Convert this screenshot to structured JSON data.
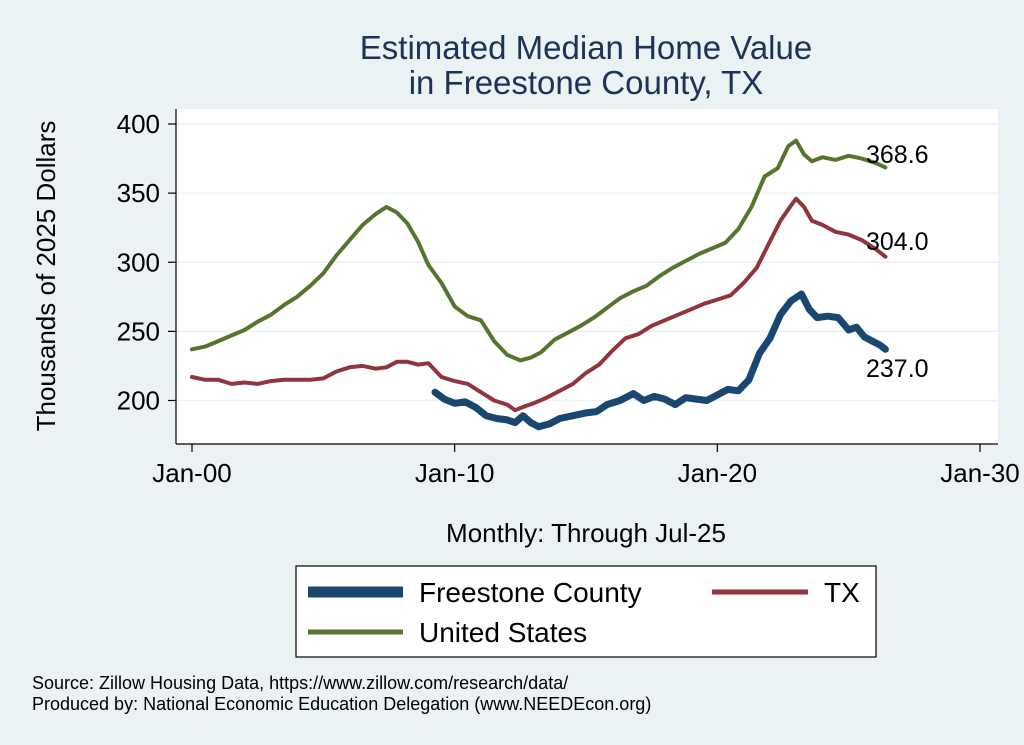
{
  "colors": {
    "freestone": "#1a476f",
    "tx": "#90353b",
    "us": "#55752f",
    "title": "#1c3357",
    "background": "#eaf2f3",
    "plot_background": "#ffffff",
    "grid": "#eaf2f3"
  },
  "chart_data": {
    "type": "line",
    "title": [
      "Estimated Median Home Value",
      "in Freestone County, TX"
    ],
    "xlabel": "Monthly: Through Jul-25",
    "ylabel": "Thousands of 2025 Dollars",
    "xlim": [
      2000,
      2030
    ],
    "ylim": [
      180,
      400
    ],
    "x_ticks": [
      {
        "value": 2000,
        "label": "Jan-00"
      },
      {
        "value": 2010,
        "label": "Jan-10"
      },
      {
        "value": 2020,
        "label": "Jan-20"
      },
      {
        "value": 2030,
        "label": "Jan-30"
      }
    ],
    "y_ticks": [
      200,
      250,
      300,
      350,
      400
    ],
    "grid": true,
    "legend": {
      "position": "bottom",
      "columns": 2
    },
    "series": [
      {
        "key": "freestone",
        "name": "Freestone County",
        "end_label": "237.0",
        "data": [
          [
            2009.25,
            206
          ],
          [
            2009.6,
            201
          ],
          [
            2010.0,
            198
          ],
          [
            2010.4,
            199
          ],
          [
            2010.8,
            195
          ],
          [
            2011.2,
            189
          ],
          [
            2011.6,
            187
          ],
          [
            2012.0,
            186
          ],
          [
            2012.3,
            184
          ],
          [
            2012.6,
            189
          ],
          [
            2012.9,
            184
          ],
          [
            2013.2,
            181
          ],
          [
            2013.6,
            183
          ],
          [
            2014.0,
            187
          ],
          [
            2014.5,
            189
          ],
          [
            2015.0,
            191
          ],
          [
            2015.4,
            192
          ],
          [
            2015.8,
            197
          ],
          [
            2016.3,
            200
          ],
          [
            2016.8,
            205
          ],
          [
            2017.2,
            200
          ],
          [
            2017.6,
            203
          ],
          [
            2018.0,
            201
          ],
          [
            2018.4,
            197
          ],
          [
            2018.8,
            202
          ],
          [
            2019.2,
            201
          ],
          [
            2019.6,
            200
          ],
          [
            2020.0,
            204
          ],
          [
            2020.4,
            208
          ],
          [
            2020.8,
            207
          ],
          [
            2021.2,
            215
          ],
          [
            2021.6,
            234
          ],
          [
            2022.0,
            245
          ],
          [
            2022.4,
            262
          ],
          [
            2022.8,
            272
          ],
          [
            2023.2,
            277
          ],
          [
            2023.5,
            266
          ],
          [
            2023.8,
            260
          ],
          [
            2024.2,
            261
          ],
          [
            2024.6,
            260
          ],
          [
            2025.0,
            251
          ],
          [
            2025.3,
            253
          ],
          [
            2025.6,
            246
          ],
          [
            2025.9,
            243
          ],
          [
            2026.2,
            240
          ],
          [
            2026.4,
            237
          ]
        ]
      },
      {
        "key": "tx",
        "name": "TX",
        "end_label": "304.0",
        "data": [
          [
            2000.0,
            217
          ],
          [
            2000.5,
            215
          ],
          [
            2001.0,
            215
          ],
          [
            2001.5,
            212
          ],
          [
            2002.0,
            213
          ],
          [
            2002.5,
            212
          ],
          [
            2003.0,
            214
          ],
          [
            2003.5,
            215
          ],
          [
            2004.0,
            215
          ],
          [
            2004.5,
            215
          ],
          [
            2005.0,
            216
          ],
          [
            2005.5,
            221
          ],
          [
            2006.0,
            224
          ],
          [
            2006.5,
            225
          ],
          [
            2007.0,
            223
          ],
          [
            2007.4,
            224
          ],
          [
            2007.8,
            228
          ],
          [
            2008.2,
            228
          ],
          [
            2008.6,
            226
          ],
          [
            2009.0,
            227
          ],
          [
            2009.5,
            217
          ],
          [
            2010.0,
            214
          ],
          [
            2010.5,
            212
          ],
          [
            2011.0,
            206
          ],
          [
            2011.5,
            200
          ],
          [
            2012.0,
            197
          ],
          [
            2012.3,
            193
          ],
          [
            2012.7,
            196
          ],
          [
            2013.0,
            198
          ],
          [
            2013.5,
            202
          ],
          [
            2014.0,
            207
          ],
          [
            2014.5,
            212
          ],
          [
            2015.0,
            220
          ],
          [
            2015.5,
            226
          ],
          [
            2016.0,
            236
          ],
          [
            2016.5,
            245
          ],
          [
            2017.0,
            248
          ],
          [
            2017.5,
            254
          ],
          [
            2018.0,
            258
          ],
          [
            2018.5,
            262
          ],
          [
            2019.0,
            266
          ],
          [
            2019.5,
            270
          ],
          [
            2020.0,
            273
          ],
          [
            2020.5,
            276
          ],
          [
            2021.0,
            285
          ],
          [
            2021.5,
            296
          ],
          [
            2022.0,
            315
          ],
          [
            2022.4,
            330
          ],
          [
            2022.8,
            341
          ],
          [
            2023.0,
            346
          ],
          [
            2023.3,
            340
          ],
          [
            2023.6,
            330
          ],
          [
            2024.0,
            327
          ],
          [
            2024.5,
            322
          ],
          [
            2025.0,
            320
          ],
          [
            2025.5,
            316
          ],
          [
            2026.0,
            310
          ],
          [
            2026.4,
            304
          ]
        ]
      },
      {
        "key": "us",
        "name": "United States",
        "end_label": "368.6",
        "data": [
          [
            2000.0,
            237
          ],
          [
            2000.5,
            239
          ],
          [
            2001.0,
            243
          ],
          [
            2001.5,
            247
          ],
          [
            2002.0,
            251
          ],
          [
            2002.5,
            257
          ],
          [
            2003.0,
            262
          ],
          [
            2003.5,
            269
          ],
          [
            2004.0,
            275
          ],
          [
            2004.5,
            283
          ],
          [
            2005.0,
            292
          ],
          [
            2005.5,
            305
          ],
          [
            2006.0,
            316
          ],
          [
            2006.5,
            327
          ],
          [
            2007.0,
            335
          ],
          [
            2007.4,
            340
          ],
          [
            2007.8,
            336
          ],
          [
            2008.2,
            328
          ],
          [
            2008.6,
            315
          ],
          [
            2009.0,
            298
          ],
          [
            2009.5,
            285
          ],
          [
            2010.0,
            268
          ],
          [
            2010.5,
            261
          ],
          [
            2011.0,
            258
          ],
          [
            2011.5,
            243
          ],
          [
            2012.0,
            233
          ],
          [
            2012.5,
            229
          ],
          [
            2012.9,
            231
          ],
          [
            2013.3,
            235
          ],
          [
            2013.8,
            244
          ],
          [
            2014.3,
            249
          ],
          [
            2014.8,
            254
          ],
          [
            2015.3,
            260
          ],
          [
            2015.8,
            267
          ],
          [
            2016.3,
            274
          ],
          [
            2016.8,
            279
          ],
          [
            2017.3,
            283
          ],
          [
            2017.8,
            290
          ],
          [
            2018.3,
            296
          ],
          [
            2018.8,
            301
          ],
          [
            2019.3,
            306
          ],
          [
            2019.8,
            310
          ],
          [
            2020.3,
            314
          ],
          [
            2020.8,
            324
          ],
          [
            2021.3,
            340
          ],
          [
            2021.8,
            362
          ],
          [
            2022.3,
            368
          ],
          [
            2022.7,
            384
          ],
          [
            2023.0,
            388
          ],
          [
            2023.3,
            378
          ],
          [
            2023.6,
            373
          ],
          [
            2024.0,
            376
          ],
          [
            2024.5,
            374
          ],
          [
            2025.0,
            377
          ],
          [
            2025.5,
            375
          ],
          [
            2026.0,
            372
          ],
          [
            2026.4,
            368.6
          ]
        ]
      }
    ]
  },
  "source_line": "Source: Zillow Housing Data, https://www.zillow.com/research/data/",
  "produced_line": "Produced by: National Economic Education Delegation (www.NEEDEcon.org)"
}
